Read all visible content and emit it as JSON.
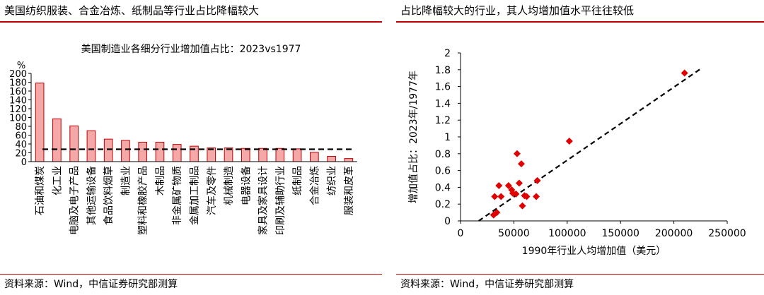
{
  "left_panel": {
    "header": "美国纺织服装、合金冶炼、纸制品等行业占比降幅较大",
    "source": "资料来源：Wind，中信证券研究部测算"
  },
  "right_panel": {
    "header": "占比降幅较大的行业，其人均增加值水平往往较低",
    "source": "资料来源：Wind，中信证券研究部测算"
  },
  "chart_data": [
    {
      "type": "bar",
      "title": "美国制造业各细分行业增加值占比：2023vs1977",
      "ylabel": "%",
      "ylim": [
        0,
        200
      ],
      "yticks": [
        0,
        20,
        40,
        60,
        80,
        100,
        120,
        140,
        160,
        180,
        200
      ],
      "categories": [
        "石油和煤炭",
        "化工业",
        "电脑及电子产品",
        "其他运输设备",
        "食品饮料烟草",
        "制造业",
        "塑料和橡胶产品",
        "木制品",
        "非金属矿物质",
        "金属加工制品",
        "汽车及零件",
        "机械制造",
        "电器设备",
        "家具及家具设计",
        "印刷及辅助行业",
        "纸制品",
        "合金冶炼",
        "纺织业",
        "服装和皮革"
      ],
      "values": [
        178,
        97,
        81,
        70,
        51,
        48,
        44,
        44,
        39,
        35,
        31,
        31,
        30,
        30,
        30,
        29,
        21,
        12,
        7
      ],
      "reference_line": 28,
      "bar_color": "#f4a8a8",
      "bar_edge": "#c00000"
    },
    {
      "type": "scatter",
      "xlabel": "1990年行业人均增加值（美元）",
      "ylabel": "增加值占比：2023年/1977年",
      "xlim": [
        0,
        250000
      ],
      "ylim": [
        0,
        2
      ],
      "xticks": [
        0,
        50000,
        100000,
        150000,
        200000,
        250000
      ],
      "yticks": [
        0,
        0.2,
        0.4,
        0.6,
        0.8,
        1,
        1.2,
        1.4,
        1.6,
        1.8,
        2
      ],
      "ytick_labels": [
        "0",
        "0.2",
        "0.4",
        "0.6",
        "0.8",
        "1",
        "1.2",
        "1.4",
        "1.6",
        "1.8",
        "2"
      ],
      "points": [
        {
          "x": 210000,
          "y": 1.76
        },
        {
          "x": 102000,
          "y": 0.95
        },
        {
          "x": 53000,
          "y": 0.8
        },
        {
          "x": 57000,
          "y": 0.68
        },
        {
          "x": 72000,
          "y": 0.48
        },
        {
          "x": 55000,
          "y": 0.45
        },
        {
          "x": 36000,
          "y": 0.42
        },
        {
          "x": 45000,
          "y": 0.42
        },
        {
          "x": 48000,
          "y": 0.37
        },
        {
          "x": 49000,
          "y": 0.33
        },
        {
          "x": 52000,
          "y": 0.32
        },
        {
          "x": 38000,
          "y": 0.29
        },
        {
          "x": 60000,
          "y": 0.3
        },
        {
          "x": 71000,
          "y": 0.29
        },
        {
          "x": 32000,
          "y": 0.29
        },
        {
          "x": 58000,
          "y": 0.18
        },
        {
          "x": 34000,
          "y": 0.1
        },
        {
          "x": 31000,
          "y": 0.07
        },
        {
          "x": 62000,
          "y": 0.29
        }
      ],
      "trendline": {
        "x": [
          17000,
          225000
        ],
        "y": [
          0.0,
          1.81
        ]
      },
      "marker_color": "#e00000"
    }
  ]
}
